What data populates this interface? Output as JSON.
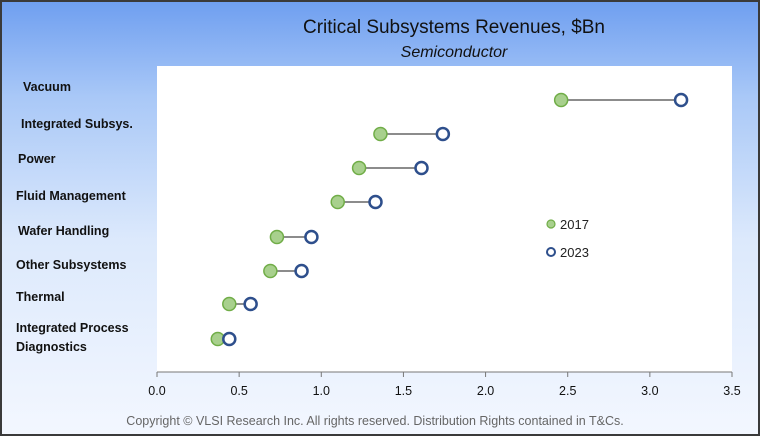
{
  "chart_data": {
    "type": "dumbbell",
    "title": "Critical Subsystems Revenues, $Bn",
    "subtitle": "Semiconductor",
    "xlim": [
      0,
      3.5
    ],
    "xticks": [
      "0.0",
      "0.5",
      "1.0",
      "1.5",
      "2.0",
      "2.5",
      "3.0",
      "3.5"
    ],
    "xtick_values": [
      0,
      0.5,
      1.0,
      1.5,
      2.0,
      2.5,
      3.0,
      3.5
    ],
    "categories": [
      [
        "Vacuum"
      ],
      [
        "Integrated Subsys."
      ],
      [
        "Power"
      ],
      [
        "Fluid Management"
      ],
      [
        "Wafer Handling"
      ],
      [
        "Other Subsystems"
      ],
      [
        "Thermal"
      ],
      [
        "Integrated Process",
        "Diagnostics"
      ]
    ],
    "series": [
      {
        "name": "2017",
        "color": "#a8d08d",
        "stroke": "#70ad47",
        "values": [
          2.46,
          1.36,
          1.23,
          1.1,
          0.73,
          0.69,
          0.44,
          0.37
        ]
      },
      {
        "name": "2023",
        "color": "#ffffff",
        "stroke": "#2e4f8c",
        "values": [
          3.19,
          1.74,
          1.61,
          1.33,
          0.94,
          0.88,
          0.57,
          0.44
        ]
      }
    ],
    "connector_color": "#8c8c8c",
    "footer": "Copyright © VLSI Research Inc.  All rights reserved.  Distribution Rights contained in T&Cs."
  }
}
